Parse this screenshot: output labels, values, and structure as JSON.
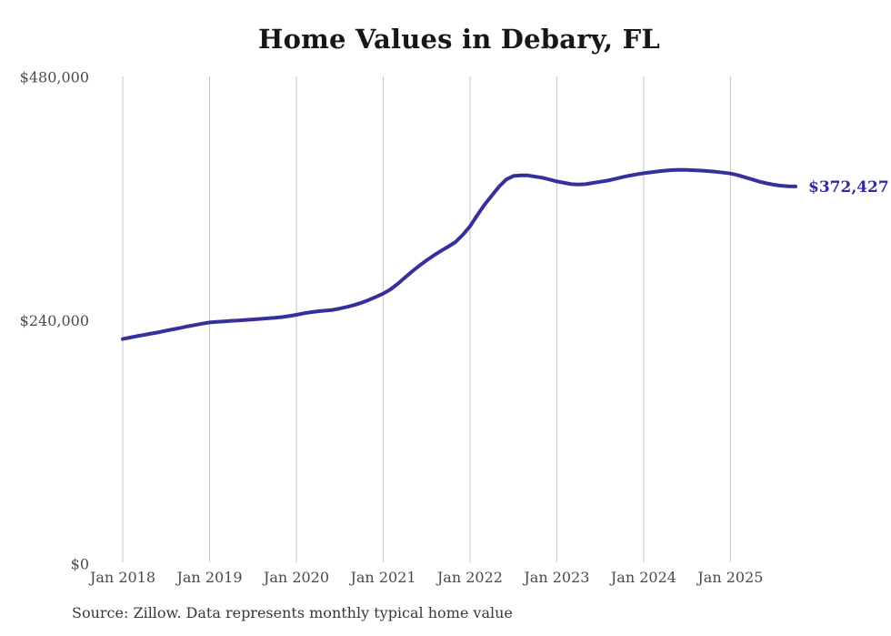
{
  "header": {
    "title": "Home Values in Debary, FL"
  },
  "chart_data": {
    "type": "line",
    "title": "Home Values in Debary, FL",
    "series_name": "Monthly typical home value",
    "x_tick_labels": [
      "Jan 2018",
      "Jan 2019",
      "Jan 2020",
      "Jan 2021",
      "Jan 2022",
      "Jan 2023",
      "Jan 2024",
      "Jan 2025"
    ],
    "y_ticks": [
      {
        "value": 0,
        "label": "$0"
      },
      {
        "value": 240000,
        "label": "$240,000"
      },
      {
        "value": 480000,
        "label": "$480,000"
      }
    ],
    "ylim": [
      0,
      480000
    ],
    "grid": "vertical-only",
    "legend": "none",
    "months": [
      "2018-01",
      "2018-02",
      "2018-03",
      "2018-04",
      "2018-05",
      "2018-06",
      "2018-07",
      "2018-08",
      "2018-09",
      "2018-10",
      "2018-11",
      "2018-12",
      "2019-01",
      "2019-02",
      "2019-03",
      "2019-04",
      "2019-05",
      "2019-06",
      "2019-07",
      "2019-08",
      "2019-09",
      "2019-10",
      "2019-11",
      "2019-12",
      "2020-01",
      "2020-02",
      "2020-03",
      "2020-04",
      "2020-05",
      "2020-06",
      "2020-07",
      "2020-08",
      "2020-09",
      "2020-10",
      "2020-11",
      "2020-12",
      "2021-01",
      "2021-02",
      "2021-03",
      "2021-04",
      "2021-05",
      "2021-06",
      "2021-07",
      "2021-08",
      "2021-09",
      "2021-10",
      "2021-11",
      "2021-12",
      "2022-01",
      "2022-02",
      "2022-03",
      "2022-04",
      "2022-05",
      "2022-06",
      "2022-07",
      "2022-08",
      "2022-09",
      "2022-10",
      "2022-11",
      "2022-12",
      "2023-01",
      "2023-02",
      "2023-03",
      "2023-04",
      "2023-05",
      "2023-06",
      "2023-07",
      "2023-08",
      "2023-09",
      "2023-10",
      "2023-11",
      "2023-12",
      "2024-01",
      "2024-02",
      "2024-03",
      "2024-04",
      "2024-05",
      "2024-06",
      "2024-07",
      "2024-08",
      "2024-09",
      "2024-10",
      "2024-11",
      "2024-12",
      "2025-01",
      "2025-02",
      "2025-03",
      "2025-04",
      "2025-05",
      "2025-06",
      "2025-07",
      "2025-08",
      "2025-09",
      "2025-10"
    ],
    "values": [
      222000,
      223400,
      224800,
      226100,
      227400,
      228700,
      230200,
      231600,
      233000,
      234500,
      235800,
      237100,
      238300,
      238900,
      239400,
      239900,
      240300,
      240800,
      241300,
      241800,
      242300,
      242900,
      243600,
      244600,
      245800,
      247300,
      248400,
      249300,
      250000,
      250700,
      252000,
      253600,
      255400,
      257800,
      260500,
      263500,
      266700,
      270900,
      276300,
      282500,
      288600,
      294200,
      299600,
      304400,
      308900,
      313100,
      317600,
      324700,
      333000,
      344000,
      354300,
      363300,
      372200,
      379200,
      382700,
      383400,
      383300,
      382100,
      381000,
      379200,
      377400,
      376000,
      374700,
      374300,
      374700,
      375900,
      377000,
      378200,
      379800,
      381500,
      383000,
      384300,
      385400,
      386300,
      387200,
      388000,
      388600,
      388800,
      388700,
      388400,
      388000,
      387500,
      386900,
      386100,
      385200,
      383600,
      381500,
      379300,
      377200,
      375500,
      374100,
      373100,
      372600,
      372427
    ],
    "last_value": 372427,
    "end_label": "$372,427",
    "line_color": "#36309e",
    "end_label_color": "#322c9b",
    "gridline_color": "#c6c6c6",
    "axis_label_color": "#4a4a4a"
  },
  "footer": {
    "source": "Source: Zillow. Data represents monthly typical home value"
  }
}
